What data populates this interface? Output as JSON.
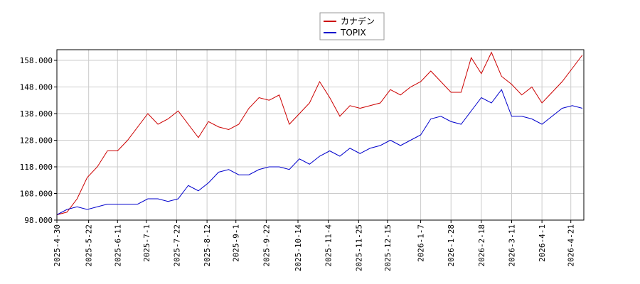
{
  "chart_data": {
    "type": "line",
    "x": [
      "2025-04-30",
      "2025-05-07",
      "2025-05-14",
      "2025-05-21",
      "2025-05-28",
      "2025-06-04",
      "2025-06-11",
      "2025-06-18",
      "2025-06-25",
      "2025-07-02",
      "2025-07-09",
      "2025-07-16",
      "2025-07-23",
      "2025-07-30",
      "2025-08-06",
      "2025-08-13",
      "2025-08-20",
      "2025-08-27",
      "2025-09-03",
      "2025-09-10",
      "2025-09-17",
      "2025-09-24",
      "2025-10-01",
      "2025-10-08",
      "2025-10-15",
      "2025-10-22",
      "2025-10-29",
      "2025-11-05",
      "2025-11-12",
      "2025-11-19",
      "2025-11-26",
      "2025-12-03",
      "2025-12-10",
      "2025-12-17",
      "2025-12-24",
      "2025-12-31",
      "2026-01-07",
      "2026-01-14",
      "2026-01-21",
      "2026-01-28",
      "2026-02-04",
      "2026-02-11",
      "2026-02-18",
      "2026-02-25",
      "2026-03-04",
      "2026-03-11",
      "2026-03-18",
      "2026-03-25",
      "2026-04-01",
      "2026-04-08",
      "2026-04-15",
      "2026-04-22",
      "2026-04-29"
    ],
    "series": [
      {
        "name": "カナデン",
        "color": "#cc0000",
        "values": [
          100,
          101,
          106,
          114,
          118,
          124,
          124,
          128,
          133,
          138,
          134,
          136,
          139,
          134,
          129,
          135,
          133,
          132,
          134,
          140,
          144,
          143,
          145,
          134,
          138,
          142,
          150,
          144,
          137,
          141,
          140,
          141,
          142,
          147,
          145,
          148,
          150,
          154,
          150,
          146,
          146,
          159,
          153,
          161,
          152,
          149,
          145,
          148,
          142,
          146,
          150,
          155,
          160
        ]
      },
      {
        "name": "TOPIX",
        "color": "#0000cc",
        "values": [
          100,
          102,
          103,
          102,
          103,
          104,
          104,
          104,
          104,
          106,
          106,
          105,
          106,
          111,
          109,
          112,
          116,
          117,
          115,
          115,
          117,
          118,
          118,
          117,
          121,
          119,
          122,
          124,
          122,
          125,
          123,
          125,
          126,
          128,
          126,
          128,
          130,
          136,
          137,
          135,
          134,
          139,
          144,
          142,
          147,
          137,
          137,
          136,
          134,
          137,
          140,
          141,
          140
        ]
      }
    ],
    "xlim": [
      "2025-04-30",
      "2026-04-30"
    ],
    "xticks": [
      {
        "value": "2025-04-30",
        "label": "2025-4-30"
      },
      {
        "value": "2025-05-22",
        "label": "2025-5-22"
      },
      {
        "value": "2025-06-11",
        "label": "2025-6-11"
      },
      {
        "value": "2025-07-01",
        "label": "2025-7-1"
      },
      {
        "value": "2025-07-22",
        "label": "2025-7-22"
      },
      {
        "value": "2025-08-12",
        "label": "2025-8-12"
      },
      {
        "value": "2025-09-01",
        "label": "2025-9-1"
      },
      {
        "value": "2025-09-22",
        "label": "2025-9-22"
      },
      {
        "value": "2025-10-14",
        "label": "2025-10-14"
      },
      {
        "value": "2025-11-04",
        "label": "2025-11-4"
      },
      {
        "value": "2025-11-25",
        "label": "2025-11-25"
      },
      {
        "value": "2025-12-15",
        "label": "2025-12-15"
      },
      {
        "value": "2026-01-07",
        "label": "2026-1-7"
      },
      {
        "value": "2026-01-28",
        "label": "2026-1-28"
      },
      {
        "value": "2026-02-18",
        "label": "2026-2-18"
      },
      {
        "value": "2026-03-11",
        "label": "2026-3-11"
      },
      {
        "value": "2026-04-01",
        "label": "2026-4-1"
      },
      {
        "value": "2026-04-21",
        "label": "2026-4-21"
      }
    ],
    "ylim": [
      98,
      162
    ],
    "yticks": [
      {
        "value": 98,
        "label": "98.000"
      },
      {
        "value": 108,
        "label": "108.000"
      },
      {
        "value": 118,
        "label": "118.000"
      },
      {
        "value": 128,
        "label": "128.000"
      },
      {
        "value": 138,
        "label": "138.000"
      },
      {
        "value": 148,
        "label": "148.000"
      },
      {
        "value": 158,
        "label": "158.000"
      }
    ],
    "grid": true
  }
}
